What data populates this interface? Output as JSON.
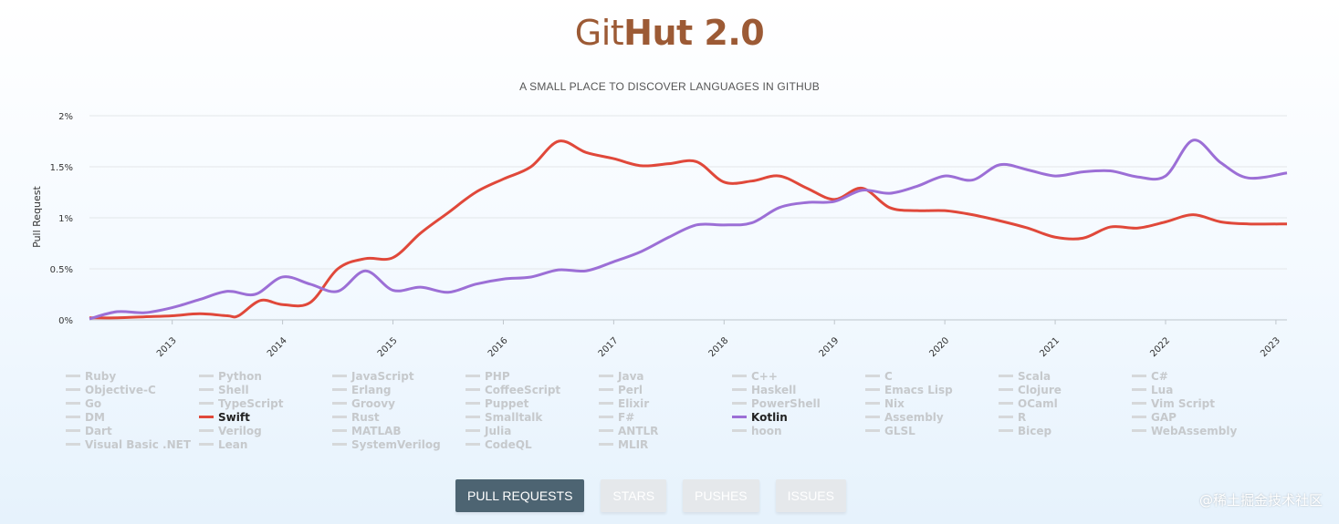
{
  "header": {
    "brand_light": "Git",
    "brand_bold": "Hut 2.0",
    "tagline": "A SMALL PLACE TO DISCOVER LANGUAGES IN GITHUB"
  },
  "chart_data": {
    "type": "line",
    "ylabel": "Pull Request",
    "xlabel": "",
    "x_domain": [
      2012.25,
      2023.1
    ],
    "ylim": [
      0,
      2
    ],
    "y_ticks": [
      0,
      0.5,
      1,
      1.5,
      2
    ],
    "y_tick_labels": [
      "0%",
      "0.5%",
      "1%",
      "1.5%",
      "2%"
    ],
    "x_ticks": [
      2013,
      2014,
      2015,
      2016,
      2017,
      2018,
      2019,
      2020,
      2021,
      2022,
      2023
    ],
    "grid": true,
    "series": [
      {
        "name": "Swift",
        "color": "#e0483a",
        "points": [
          [
            2012.25,
            0.02
          ],
          [
            2012.5,
            0.02
          ],
          [
            2012.75,
            0.03
          ],
          [
            2013.0,
            0.04
          ],
          [
            2013.25,
            0.06
          ],
          [
            2013.5,
            0.04
          ],
          [
            2013.6,
            0.04
          ],
          [
            2013.8,
            0.19
          ],
          [
            2014.0,
            0.15
          ],
          [
            2014.25,
            0.17
          ],
          [
            2014.5,
            0.5
          ],
          [
            2014.75,
            0.6
          ],
          [
            2015.0,
            0.61
          ],
          [
            2015.25,
            0.85
          ],
          [
            2015.5,
            1.05
          ],
          [
            2015.75,
            1.25
          ],
          [
            2016.0,
            1.38
          ],
          [
            2016.25,
            1.5
          ],
          [
            2016.5,
            1.75
          ],
          [
            2016.75,
            1.64
          ],
          [
            2017.0,
            1.58
          ],
          [
            2017.25,
            1.51
          ],
          [
            2017.5,
            1.53
          ],
          [
            2017.75,
            1.55
          ],
          [
            2018.0,
            1.35
          ],
          [
            2018.25,
            1.36
          ],
          [
            2018.5,
            1.41
          ],
          [
            2018.75,
            1.29
          ],
          [
            2019.0,
            1.18
          ],
          [
            2019.25,
            1.29
          ],
          [
            2019.5,
            1.1
          ],
          [
            2019.75,
            1.07
          ],
          [
            2020.0,
            1.07
          ],
          [
            2020.25,
            1.03
          ],
          [
            2020.5,
            0.97
          ],
          [
            2020.75,
            0.9
          ],
          [
            2021.0,
            0.81
          ],
          [
            2021.25,
            0.8
          ],
          [
            2021.5,
            0.91
          ],
          [
            2021.75,
            0.9
          ],
          [
            2022.0,
            0.96
          ],
          [
            2022.25,
            1.03
          ],
          [
            2022.5,
            0.96
          ],
          [
            2022.75,
            0.94
          ],
          [
            2023.1,
            0.94
          ]
        ]
      },
      {
        "name": "Kotlin",
        "color": "#9c6fd6",
        "points": [
          [
            2012.25,
            0.01
          ],
          [
            2012.5,
            0.08
          ],
          [
            2012.75,
            0.07
          ],
          [
            2013.0,
            0.12
          ],
          [
            2013.25,
            0.2
          ],
          [
            2013.5,
            0.28
          ],
          [
            2013.75,
            0.25
          ],
          [
            2014.0,
            0.42
          ],
          [
            2014.25,
            0.35
          ],
          [
            2014.5,
            0.28
          ],
          [
            2014.75,
            0.48
          ],
          [
            2015.0,
            0.29
          ],
          [
            2015.25,
            0.32
          ],
          [
            2015.5,
            0.27
          ],
          [
            2015.75,
            0.35
          ],
          [
            2016.0,
            0.4
          ],
          [
            2016.25,
            0.42
          ],
          [
            2016.5,
            0.49
          ],
          [
            2016.75,
            0.48
          ],
          [
            2017.0,
            0.57
          ],
          [
            2017.25,
            0.67
          ],
          [
            2017.5,
            0.81
          ],
          [
            2017.75,
            0.93
          ],
          [
            2018.0,
            0.93
          ],
          [
            2018.25,
            0.95
          ],
          [
            2018.5,
            1.1
          ],
          [
            2018.75,
            1.15
          ],
          [
            2019.0,
            1.16
          ],
          [
            2019.25,
            1.27
          ],
          [
            2019.5,
            1.24
          ],
          [
            2019.75,
            1.31
          ],
          [
            2020.0,
            1.41
          ],
          [
            2020.25,
            1.37
          ],
          [
            2020.5,
            1.52
          ],
          [
            2020.75,
            1.47
          ],
          [
            2021.0,
            1.41
          ],
          [
            2021.25,
            1.45
          ],
          [
            2021.5,
            1.46
          ],
          [
            2021.75,
            1.4
          ],
          [
            2022.0,
            1.41
          ],
          [
            2022.25,
            1.76
          ],
          [
            2022.5,
            1.54
          ],
          [
            2022.75,
            1.39
          ],
          [
            2023.1,
            1.44
          ]
        ]
      }
    ]
  },
  "legend": {
    "languages": [
      "Ruby",
      "Python",
      "JavaScript",
      "PHP",
      "Java",
      "C++",
      "C",
      "Scala",
      "C#",
      "Objective-C",
      "Shell",
      "Erlang",
      "CoffeeScript",
      "Perl",
      "Haskell",
      "Emacs Lisp",
      "Clojure",
      "Lua",
      "Go",
      "TypeScript",
      "Groovy",
      "Puppet",
      "Elixir",
      "PowerShell",
      "Nix",
      "OCaml",
      "Vim Script",
      "DM",
      "Swift",
      "Rust",
      "Smalltalk",
      "F#",
      "Kotlin",
      "Assembly",
      "R",
      "GAP",
      "Dart",
      "Verilog",
      "MATLAB",
      "Julia",
      "ANTLR",
      "hoon",
      "GLSL",
      "Bicep",
      "WebAssembly",
      "Visual Basic .NET",
      "Lean",
      "SystemVerilog",
      "CodeQL",
      "MLIR"
    ],
    "active": [
      "Swift",
      "Kotlin"
    ]
  },
  "tabs": [
    {
      "label": "PULL REQUESTS",
      "active": true
    },
    {
      "label": "STARS",
      "active": false
    },
    {
      "label": "PUSHES",
      "active": false
    },
    {
      "label": "ISSUES",
      "active": false
    }
  ],
  "watermark": "@稀土掘金技术社区"
}
